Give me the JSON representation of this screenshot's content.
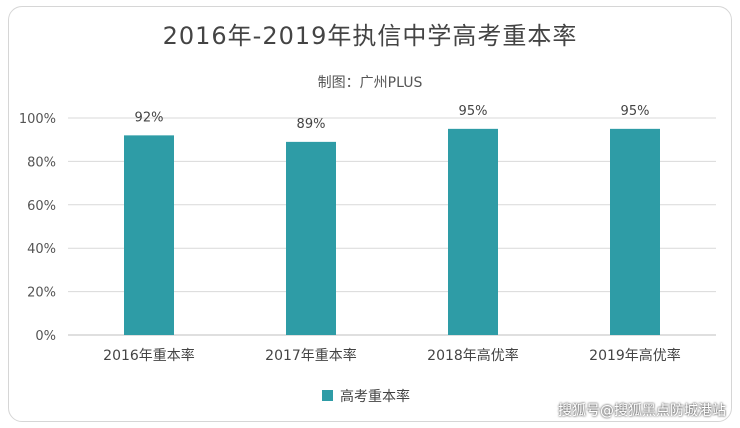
{
  "chart_data": {
    "type": "bar",
    "title": "2016年-2019年执信中学高考重本率",
    "subtitle": "制图：广州PLUS",
    "categories": [
      "2016年重本率",
      "2017年重本率",
      "2018年高优率",
      "2019年高优率"
    ],
    "series": [
      {
        "name": "高考重本率",
        "values": [
          92,
          89,
          95,
          95
        ]
      }
    ],
    "data_labels": [
      "92%",
      "89%",
      "95%",
      "95%"
    ],
    "ylim": [
      0,
      100
    ],
    "yticks": [
      "0%",
      "20%",
      "40%",
      "60%",
      "80%",
      "100%"
    ],
    "grid": true,
    "legend": "bottom",
    "colors": {
      "bar": "#2e9ca6",
      "grid": "#d9d9d9",
      "axis_text": "#555555"
    }
  },
  "watermark": "搜狐号@搜狐黑点防城港站"
}
